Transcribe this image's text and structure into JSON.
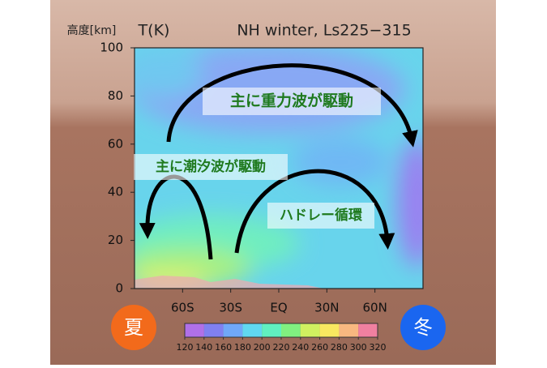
{
  "chart_data": {
    "type": "contour",
    "title": "NH winter, Ls225−315",
    "y_axis_label": "高度[km]",
    "field_label": "T(K)",
    "xlim": [
      -90,
      90
    ],
    "xticks": [
      {
        "value": -60,
        "label": "60S"
      },
      {
        "value": -30,
        "label": "30S"
      },
      {
        "value": 0,
        "label": "EQ"
      },
      {
        "value": 30,
        "label": "30N"
      },
      {
        "value": 60,
        "label": "60N"
      }
    ],
    "ylim": [
      0,
      100
    ],
    "yticks": [
      0,
      20,
      40,
      60,
      80,
      100
    ],
    "annotations": [
      "主に重力波が駆動",
      "主に潮汐波が駆動",
      "ハドレー循環"
    ],
    "summer_label": "夏",
    "winter_label": "冬",
    "colorbar": {
      "ticks": [
        120,
        140,
        160,
        180,
        200,
        220,
        240,
        260,
        280,
        300,
        320
      ],
      "colors": [
        "#b070e8",
        "#8080f0",
        "#70a8f8",
        "#60d8f0",
        "#60f0c0",
        "#80f080",
        "#d0f060",
        "#f8e860",
        "#f8b880",
        "#f080a0"
      ]
    }
  }
}
